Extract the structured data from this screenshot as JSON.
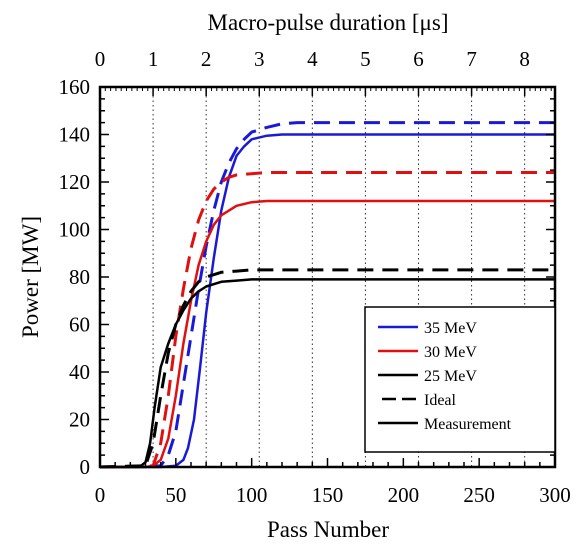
{
  "chart_data": {
    "type": "line",
    "xlabel": "Pass Number",
    "x2label": "Macro-pulse duration [μs]",
    "ylabel": "Power [MW]",
    "xlim": [
      0,
      300
    ],
    "ylim": [
      0,
      160
    ],
    "x_ticks": [
      "0",
      "50",
      "100",
      "150",
      "200",
      "250",
      "300"
    ],
    "y_ticks": [
      "0",
      "20",
      "40",
      "60",
      "80",
      "100",
      "120",
      "140",
      "160"
    ],
    "x2_ticks": [
      "0",
      "1",
      "2",
      "3",
      "4",
      "5",
      "6",
      "7",
      "8"
    ],
    "x2_tick_positions_pass": [
      0,
      35,
      70,
      105,
      140,
      175,
      210,
      245,
      280
    ],
    "grid": "vertical dotted lines at top-axis ticks",
    "legend_placement": "bottom-right",
    "legend": [
      {
        "label": "35 MeV",
        "color": "#1a1ad6",
        "style": "solid"
      },
      {
        "label": "30 MeV",
        "color": "#e01010",
        "style": "solid"
      },
      {
        "label": "25 MeV",
        "color": "#000000",
        "style": "solid"
      },
      {
        "label": "Ideal",
        "color": "#000000",
        "style": "dashed"
      },
      {
        "label": "Measurement",
        "color": "#000000",
        "style": "solid"
      }
    ],
    "series": [
      {
        "energy": "35 MeV",
        "kind": "measurement",
        "color": "#1a1ad6",
        "dashed": false,
        "x": [
          0,
          40,
          50,
          55,
          58,
          62,
          66,
          70,
          75,
          80,
          85,
          90,
          95,
          100,
          110,
          120,
          130,
          150,
          200,
          300
        ],
        "y": [
          0,
          0,
          0.5,
          3,
          8,
          20,
          42,
          65,
          88,
          108,
          122,
          131,
          135,
          138,
          139.5,
          140,
          140,
          140,
          140,
          140
        ]
      },
      {
        "energy": "35 MeV",
        "kind": "ideal",
        "color": "#1a1ad6",
        "dashed": true,
        "x": [
          0,
          40,
          45,
          50,
          55,
          60,
          65,
          70,
          75,
          80,
          85,
          90,
          95,
          100,
          110,
          120,
          130,
          150,
          200,
          300
        ],
        "y": [
          0,
          0.5,
          5,
          15,
          35,
          55,
          75,
          93,
          108,
          120,
          128,
          134,
          138,
          141,
          143,
          144.5,
          145,
          145,
          145,
          145
        ]
      },
      {
        "energy": "30 MeV",
        "kind": "measurement",
        "color": "#e01010",
        "dashed": false,
        "x": [
          0,
          30,
          35,
          40,
          45,
          50,
          55,
          60,
          65,
          70,
          75,
          80,
          90,
          100,
          110,
          130,
          150,
          200,
          300
        ],
        "y": [
          0,
          0,
          0.5,
          3,
          12,
          30,
          52,
          70,
          85,
          95,
          102,
          106,
          110,
          111.5,
          112,
          112,
          112,
          112,
          112
        ]
      },
      {
        "energy": "30 MeV",
        "kind": "ideal",
        "color": "#e01010",
        "dashed": true,
        "x": [
          0,
          35,
          40,
          45,
          50,
          55,
          60,
          65,
          70,
          75,
          80,
          85,
          90,
          100,
          110,
          130,
          150,
          200,
          300
        ],
        "y": [
          0,
          0.5,
          10,
          30,
          55,
          75,
          92,
          104,
          112,
          117,
          120,
          122,
          123,
          123.5,
          124,
          124,
          124,
          124,
          124
        ]
      },
      {
        "energy": "25 MeV",
        "kind": "measurement",
        "color": "#000000",
        "dashed": false,
        "x": [
          0,
          26,
          30,
          33,
          36,
          40,
          45,
          50,
          55,
          60,
          65,
          70,
          80,
          90,
          100,
          120,
          150,
          200,
          300
        ],
        "y": [
          0,
          0,
          2,
          10,
          25,
          42,
          52,
          60,
          66,
          71,
          74,
          76,
          78,
          78.5,
          79,
          79,
          79,
          79,
          79
        ]
      },
      {
        "energy": "25 MeV",
        "kind": "ideal",
        "color": "#000000",
        "dashed": true,
        "x": [
          0,
          30,
          35,
          40,
          45,
          50,
          55,
          60,
          65,
          70,
          80,
          90,
          100,
          120,
          150,
          200,
          300
        ],
        "y": [
          0,
          0.5,
          10,
          30,
          48,
          60,
          68,
          74,
          78,
          80,
          82,
          82.5,
          83,
          83,
          83,
          83,
          83
        ]
      }
    ]
  }
}
